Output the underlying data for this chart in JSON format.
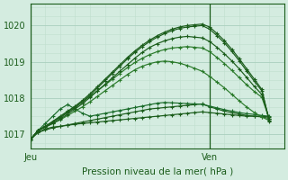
{
  "xlabel": "Pression niveau de la mer( hPa )",
  "bg_color": "#d4ece0",
  "grid_color_major": "#aacfbe",
  "grid_color_minor": "#c0dece",
  "line_colors": [
    "#1a5c1a",
    "#1a5c1a",
    "#1a6c2a",
    "#2a7a2a",
    "#2a7a2a",
    "#1a5c1a",
    "#1a5c1a",
    "#1a5c1a"
  ],
  "ylim": [
    1016.6,
    1020.6
  ],
  "yticks": [
    1017,
    1018,
    1019,
    1020
  ],
  "xlim": [
    0,
    34
  ],
  "x_jeu": 0,
  "x_ven": 24,
  "n_points": 33,
  "series": [
    [
      1016.85,
      1017.05,
      1017.15,
      1017.2,
      1017.22,
      1017.25,
      1017.28,
      1017.3,
      1017.32,
      1017.34,
      1017.36,
      1017.38,
      1017.4,
      1017.42,
      1017.44,
      1017.46,
      1017.48,
      1017.5,
      1017.52,
      1017.54,
      1017.56,
      1017.58,
      1017.6,
      1017.62,
      1017.6,
      1017.58,
      1017.56,
      1017.54,
      1017.52,
      1017.5,
      1017.5,
      1017.5,
      1017.48
    ],
    [
      1016.85,
      1017.05,
      1017.12,
      1017.18,
      1017.22,
      1017.26,
      1017.3,
      1017.34,
      1017.38,
      1017.42,
      1017.46,
      1017.5,
      1017.54,
      1017.58,
      1017.62,
      1017.66,
      1017.7,
      1017.72,
      1017.74,
      1017.76,
      1017.78,
      1017.8,
      1017.82,
      1017.84,
      1017.76,
      1017.7,
      1017.64,
      1017.6,
      1017.56,
      1017.52,
      1017.5,
      1017.48,
      1017.44
    ],
    [
      1016.85,
      1017.1,
      1017.3,
      1017.5,
      1017.7,
      1017.82,
      1017.7,
      1017.58,
      1017.5,
      1017.54,
      1017.58,
      1017.62,
      1017.66,
      1017.7,
      1017.74,
      1017.78,
      1017.82,
      1017.86,
      1017.88,
      1017.87,
      1017.86,
      1017.85,
      1017.84,
      1017.83,
      1017.78,
      1017.73,
      1017.68,
      1017.64,
      1017.6,
      1017.57,
      1017.55,
      1017.52,
      1017.5
    ],
    [
      1016.85,
      1017.1,
      1017.2,
      1017.3,
      1017.4,
      1017.52,
      1017.64,
      1017.76,
      1017.9,
      1018.05,
      1018.2,
      1018.35,
      1018.5,
      1018.65,
      1018.78,
      1018.88,
      1018.95,
      1019.0,
      1019.02,
      1019.0,
      1018.96,
      1018.9,
      1018.82,
      1018.74,
      1018.6,
      1018.44,
      1018.28,
      1018.1,
      1017.92,
      1017.75,
      1017.6,
      1017.48,
      1017.38
    ],
    [
      1016.85,
      1017.1,
      1017.22,
      1017.34,
      1017.48,
      1017.62,
      1017.76,
      1017.9,
      1018.05,
      1018.2,
      1018.36,
      1018.52,
      1018.68,
      1018.84,
      1018.98,
      1019.1,
      1019.2,
      1019.28,
      1019.34,
      1019.38,
      1019.4,
      1019.42,
      1019.4,
      1019.38,
      1019.28,
      1019.12,
      1018.95,
      1018.76,
      1018.56,
      1018.36,
      1018.18,
      1018.02,
      1017.42
    ],
    [
      1016.85,
      1017.1,
      1017.2,
      1017.3,
      1017.42,
      1017.56,
      1017.7,
      1017.85,
      1018.02,
      1018.2,
      1018.38,
      1018.56,
      1018.74,
      1018.92,
      1019.1,
      1019.26,
      1019.4,
      1019.5,
      1019.58,
      1019.64,
      1019.68,
      1019.7,
      1019.68,
      1019.66,
      1019.56,
      1019.4,
      1019.22,
      1019.02,
      1018.8,
      1018.56,
      1018.32,
      1018.1,
      1017.42
    ],
    [
      1016.85,
      1017.1,
      1017.22,
      1017.34,
      1017.46,
      1017.6,
      1017.74,
      1017.9,
      1018.08,
      1018.28,
      1018.48,
      1018.68,
      1018.88,
      1019.08,
      1019.26,
      1019.42,
      1019.56,
      1019.68,
      1019.78,
      1019.86,
      1019.92,
      1019.96,
      1019.98,
      1020.0,
      1019.9,
      1019.72,
      1019.52,
      1019.28,
      1019.02,
      1018.74,
      1018.46,
      1018.2,
      1017.38
    ],
    [
      1016.85,
      1017.1,
      1017.22,
      1017.36,
      1017.5,
      1017.64,
      1017.78,
      1017.94,
      1018.12,
      1018.32,
      1018.52,
      1018.72,
      1018.92,
      1019.12,
      1019.3,
      1019.46,
      1019.6,
      1019.72,
      1019.82,
      1019.9,
      1019.96,
      1020.0,
      1020.02,
      1020.04,
      1019.96,
      1019.78,
      1019.58,
      1019.34,
      1019.08,
      1018.8,
      1018.52,
      1018.24,
      1017.35
    ]
  ]
}
